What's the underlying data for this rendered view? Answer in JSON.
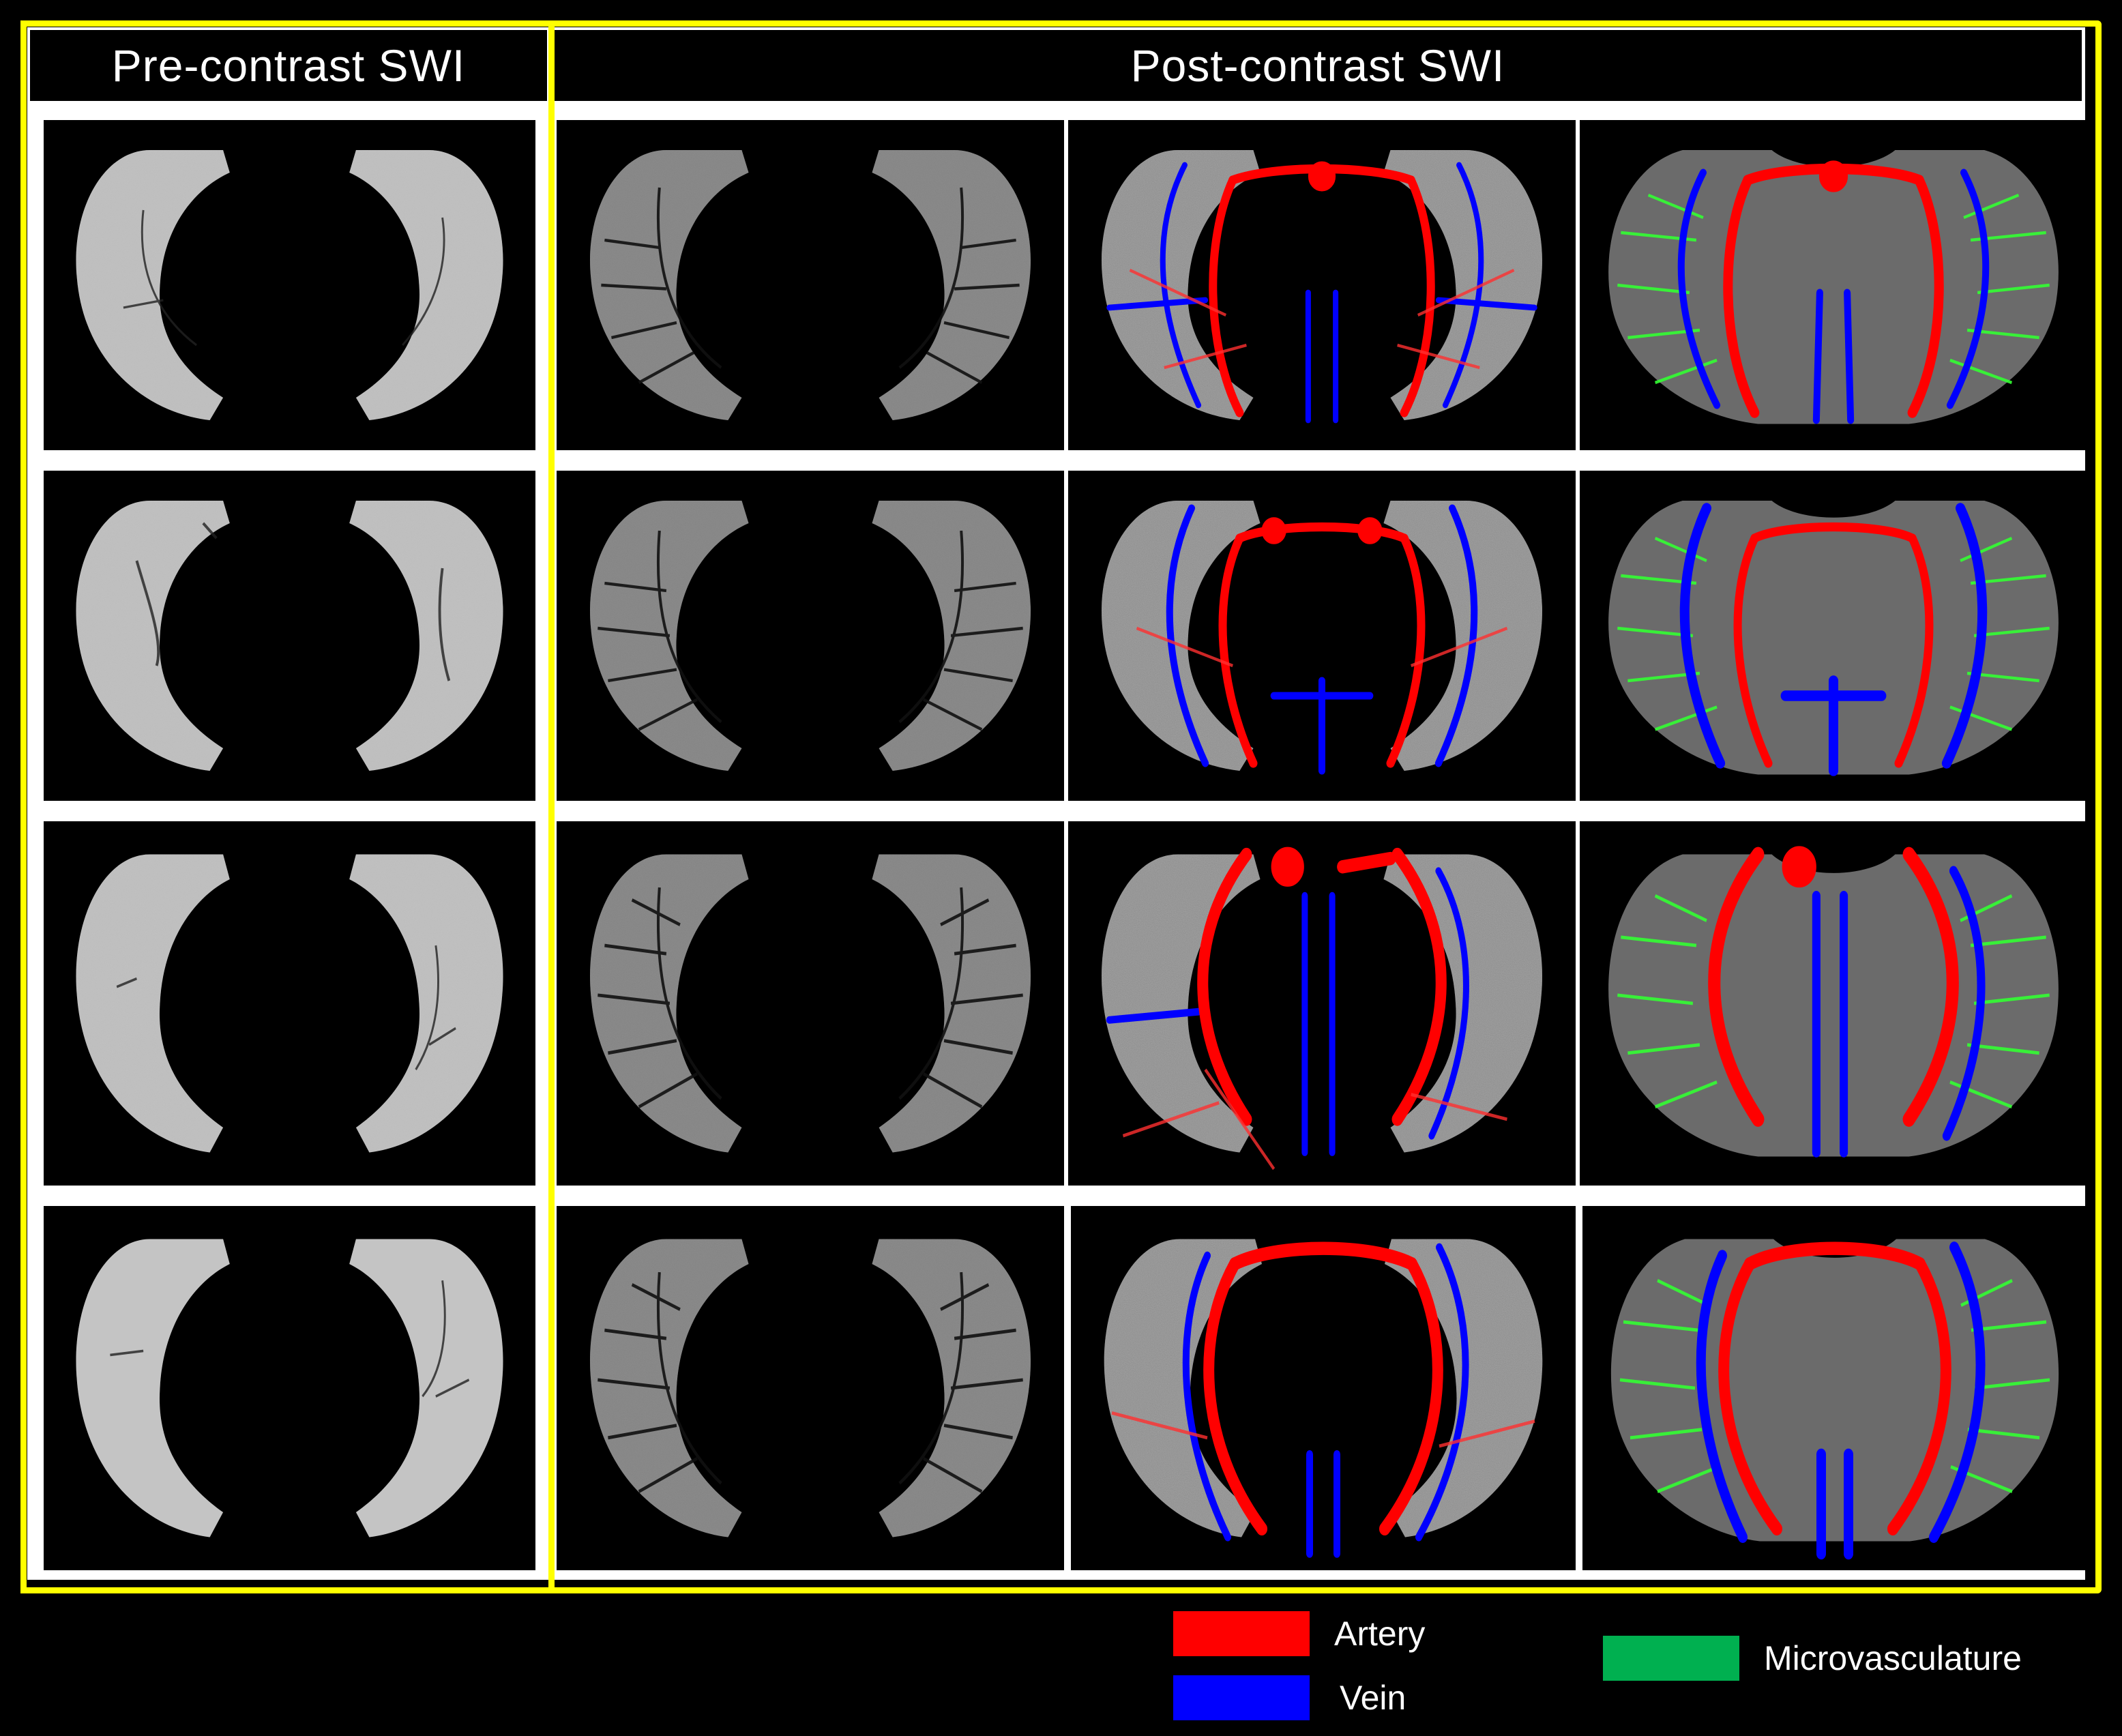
{
  "headers": {
    "pre_contrast": "Pre-contrast SWI",
    "post_contrast": "Post-contrast SWI"
  },
  "colors": {
    "frame": "#ffff00",
    "artery": "#ff0000",
    "vein": "#0000ff",
    "microvasculature": "#00b050",
    "micro_overlay": "#33ff33",
    "brain_tissue_gray": "#6b6b6b"
  },
  "panels": {
    "rows": 4,
    "columns": [
      "pre-contrast-swi",
      "post-contrast-swi",
      "post-contrast-artery-vein-overlay",
      "post-contrast-segmentation"
    ]
  },
  "legend": {
    "artery": "Artery",
    "vein": "Vein",
    "microvasculature": "Microvasculature"
  }
}
